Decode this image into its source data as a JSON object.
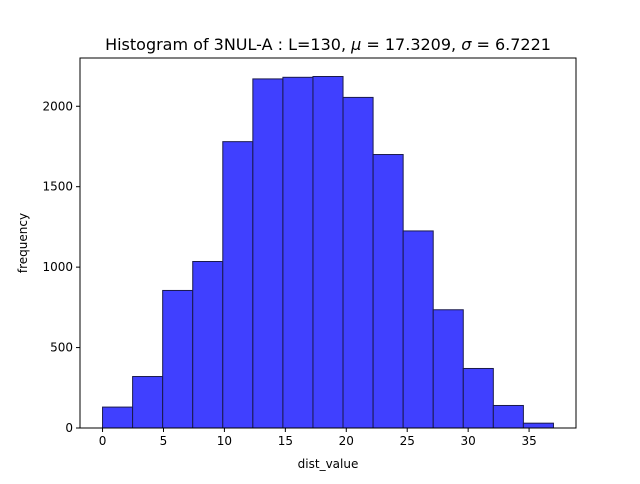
{
  "chart_data": {
    "type": "bar",
    "title": "Histogram of 3NUL-A : L=130, μ = 17.3209, σ = 6.7221",
    "title_parts": {
      "prefix": "Histogram of 3NUL-A : L=130, ",
      "mu_symbol": "μ",
      "mu_value": " = 17.3209, ",
      "sigma_symbol": "σ",
      "sigma_value": " = 6.7221"
    },
    "xlabel": "dist_value",
    "ylabel": "frequency",
    "xlim": [
      -1.85,
      38.85
    ],
    "ylim": [
      0,
      2300
    ],
    "x_ticks": [
      0,
      5,
      10,
      15,
      20,
      25,
      30,
      35
    ],
    "y_ticks": [
      0,
      500,
      1000,
      1500,
      2000
    ],
    "bin_edges": [
      0,
      2.4667,
      4.9333,
      7.4,
      9.8667,
      12.3333,
      14.8,
      17.2667,
      19.7333,
      22.2,
      24.6667,
      27.1333,
      29.6,
      32.0667,
      34.5333,
      37
    ],
    "values": [
      130,
      320,
      855,
      1035,
      1780,
      2170,
      2180,
      2185,
      2055,
      1700,
      1225,
      735,
      370,
      140,
      30
    ],
    "bar_fill": "#4040ff",
    "bar_stroke": "#1a1a4d",
    "grid": false,
    "legend": "none"
  }
}
